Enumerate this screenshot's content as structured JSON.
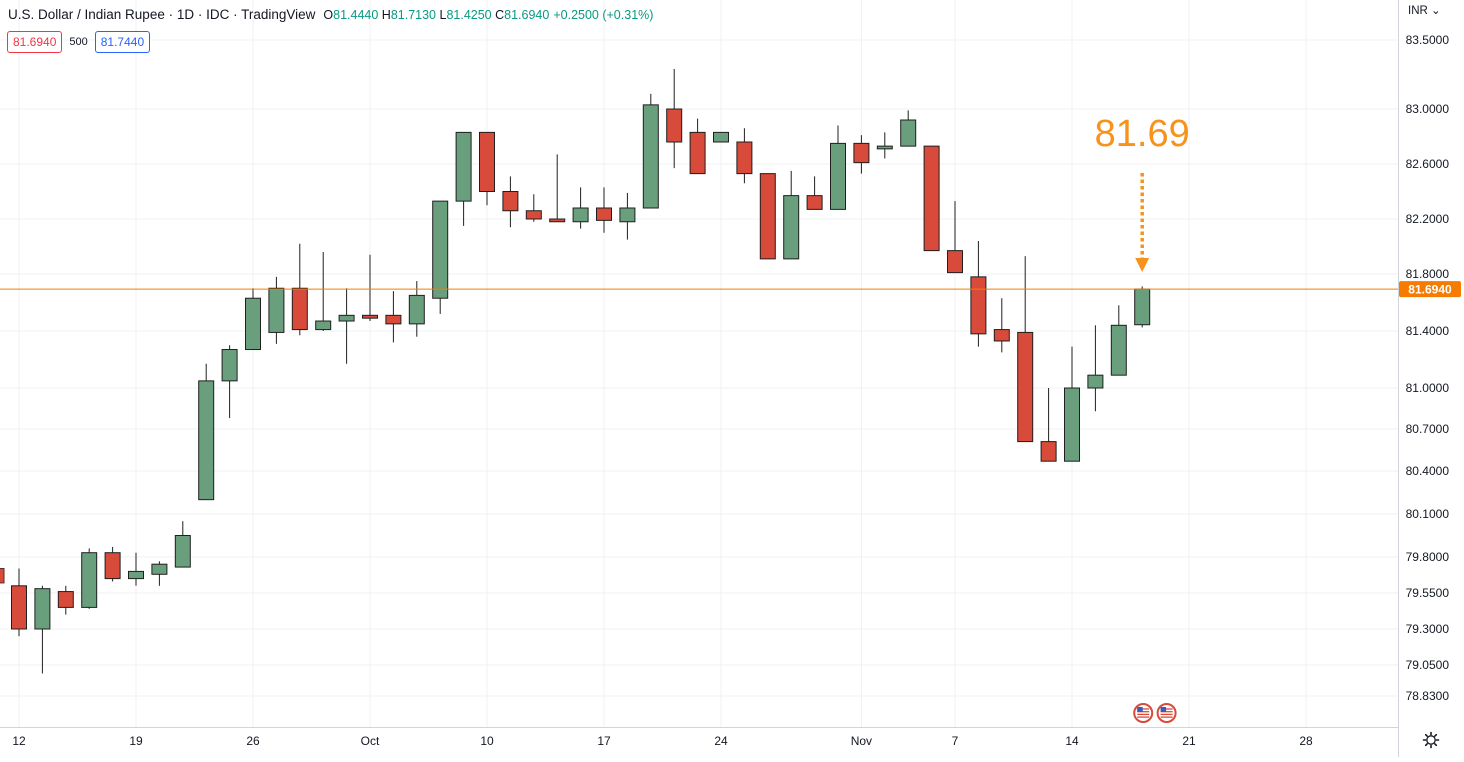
{
  "header": {
    "title": "U.S. Dollar / Indian Rupee · 1D · IDC · TradingView",
    "ohlc": {
      "o_label": "O",
      "o": "81.4440",
      "h_label": "H",
      "h": "81.7130",
      "l_label": "L",
      "l": "81.4250",
      "c_label": "C",
      "c": "81.6940"
    },
    "change": "+0.2500 (+0.31%)"
  },
  "quote": {
    "sell": "81.6940",
    "spread": "500",
    "buy": "81.7440"
  },
  "axis": {
    "currency_label": "INR"
  },
  "colors": {
    "up": "#6a9f7e",
    "down": "#d84a39",
    "price_line": "#f57c00",
    "annotation": "#f7931a"
  },
  "chart_data": {
    "type": "candlestick",
    "price_axis_labels": [
      "83.5000",
      "83.0000",
      "82.6000",
      "82.2000",
      "81.8000",
      "81.4000",
      "81.0000",
      "80.7000",
      "80.4000",
      "80.1000",
      "79.8000",
      "79.5500",
      "79.3000",
      "79.0500",
      "78.8300"
    ],
    "x_tick_labels": [
      {
        "label": "12",
        "index": 0
      },
      {
        "label": "19",
        "index": 5
      },
      {
        "label": "26",
        "index": 10
      },
      {
        "label": "Oct",
        "index": 15
      },
      {
        "label": "10",
        "index": 20
      },
      {
        "label": "17",
        "index": 25
      },
      {
        "label": "24",
        "index": 30
      },
      {
        "label": "Nov",
        "index": 36
      },
      {
        "label": "7",
        "index": 40
      },
      {
        "label": "14",
        "index": 45
      },
      {
        "label": "21",
        "index": 50
      },
      {
        "label": "28",
        "index": 55
      }
    ],
    "candles": [
      {
        "i": 0,
        "o": 79.6,
        "h": 79.72,
        "l": 79.25,
        "c": 79.3
      },
      {
        "i": 1,
        "o": 79.3,
        "h": 79.6,
        "l": 78.99,
        "c": 79.58
      },
      {
        "i": 2,
        "o": 79.56,
        "h": 79.6,
        "l": 79.4,
        "c": 79.45
      },
      {
        "i": 3,
        "o": 79.45,
        "h": 79.86,
        "l": 79.44,
        "c": 79.83
      },
      {
        "i": 4,
        "o": 79.83,
        "h": 79.87,
        "l": 79.63,
        "c": 79.65
      },
      {
        "i": 5,
        "o": 79.65,
        "h": 79.83,
        "l": 79.6,
        "c": 79.7
      },
      {
        "i": 6,
        "o": 79.68,
        "h": 79.77,
        "l": 79.6,
        "c": 79.75
      },
      {
        "i": 7,
        "o": 79.73,
        "h": 80.05,
        "l": 79.73,
        "c": 79.95
      },
      {
        "i": 8,
        "o": 80.2,
        "h": 81.17,
        "l": 80.2,
        "c": 81.05
      },
      {
        "i": 9,
        "o": 81.05,
        "h": 81.3,
        "l": 80.78,
        "c": 81.27
      },
      {
        "i": 10,
        "o": 81.27,
        "h": 81.7,
        "l": 81.27,
        "c": 81.63
      },
      {
        "i": 11,
        "o": 81.39,
        "h": 81.78,
        "l": 81.31,
        "c": 81.7
      },
      {
        "i": 12,
        "o": 81.7,
        "h": 82.02,
        "l": 81.37,
        "c": 81.41
      },
      {
        "i": 13,
        "o": 81.41,
        "h": 81.96,
        "l": 81.4,
        "c": 81.47
      },
      {
        "i": 14,
        "o": 81.47,
        "h": 81.7,
        "l": 81.17,
        "c": 81.51
      },
      {
        "i": 15,
        "o": 81.51,
        "h": 81.94,
        "l": 81.47,
        "c": 81.49
      },
      {
        "i": 16,
        "o": 81.51,
        "h": 81.68,
        "l": 81.32,
        "c": 81.45
      },
      {
        "i": 17,
        "o": 81.45,
        "h": 81.75,
        "l": 81.36,
        "c": 81.65
      },
      {
        "i": 18,
        "o": 81.63,
        "h": 82.33,
        "l": 81.52,
        "c": 82.33
      },
      {
        "i": 19,
        "o": 82.33,
        "h": 82.83,
        "l": 82.15,
        "c": 82.83
      },
      {
        "i": 20,
        "o": 82.83,
        "h": 82.83,
        "l": 82.3,
        "c": 82.4
      },
      {
        "i": 21,
        "o": 82.4,
        "h": 82.51,
        "l": 82.14,
        "c": 82.26
      },
      {
        "i": 22,
        "o": 82.26,
        "h": 82.38,
        "l": 82.18,
        "c": 82.2
      },
      {
        "i": 23,
        "o": 82.2,
        "h": 82.67,
        "l": 82.18,
        "c": 82.18
      },
      {
        "i": 24,
        "o": 82.18,
        "h": 82.43,
        "l": 82.13,
        "c": 82.28
      },
      {
        "i": 25,
        "o": 82.28,
        "h": 82.43,
        "l": 82.1,
        "c": 82.19
      },
      {
        "i": 26,
        "o": 82.18,
        "h": 82.39,
        "l": 82.05,
        "c": 82.28
      },
      {
        "i": 27,
        "o": 82.28,
        "h": 83.11,
        "l": 82.28,
        "c": 83.03
      },
      {
        "i": 28,
        "o": 83.0,
        "h": 83.29,
        "l": 82.57,
        "c": 82.76
      },
      {
        "i": 29,
        "o": 82.83,
        "h": 82.93,
        "l": 82.53,
        "c": 82.53
      },
      {
        "i": 30,
        "o": 82.76,
        "h": 82.83,
        "l": 82.76,
        "c": 82.83
      },
      {
        "i": 31,
        "o": 82.76,
        "h": 82.86,
        "l": 82.46,
        "c": 82.53
      },
      {
        "i": 32,
        "o": 82.53,
        "h": 82.53,
        "l": 81.91,
        "c": 81.91
      },
      {
        "i": 33,
        "o": 81.91,
        "h": 82.55,
        "l": 81.91,
        "c": 82.37
      },
      {
        "i": 34,
        "o": 82.37,
        "h": 82.51,
        "l": 82.27,
        "c": 82.27
      },
      {
        "i": 35,
        "o": 82.27,
        "h": 82.88,
        "l": 82.27,
        "c": 82.75
      },
      {
        "i": 36,
        "o": 82.75,
        "h": 82.81,
        "l": 82.53,
        "c": 82.61
      },
      {
        "i": 37,
        "o": 82.71,
        "h": 82.83,
        "l": 82.64,
        "c": 82.73
      },
      {
        "i": 38,
        "o": 82.73,
        "h": 82.99,
        "l": 82.73,
        "c": 82.92
      },
      {
        "i": 39,
        "o": 82.73,
        "h": 82.73,
        "l": 81.97,
        "c": 81.97
      },
      {
        "i": 40,
        "o": 81.97,
        "h": 82.33,
        "l": 81.81,
        "c": 81.81
      },
      {
        "i": 41,
        "o": 81.78,
        "h": 82.04,
        "l": 81.29,
        "c": 81.38
      },
      {
        "i": 42,
        "o": 81.41,
        "h": 81.63,
        "l": 81.25,
        "c": 81.33
      },
      {
        "i": 43,
        "o": 81.39,
        "h": 81.93,
        "l": 80.61,
        "c": 80.61
      },
      {
        "i": 44,
        "o": 80.61,
        "h": 81.0,
        "l": 80.47,
        "c": 80.47
      },
      {
        "i": 45,
        "o": 80.47,
        "h": 81.29,
        "l": 80.47,
        "c": 81.0
      },
      {
        "i": 46,
        "o": 81.0,
        "h": 81.44,
        "l": 80.83,
        "c": 81.09
      },
      {
        "i": 47,
        "o": 81.09,
        "h": 81.58,
        "l": 81.09,
        "c": 81.44
      },
      {
        "i": 48,
        "o": 81.444,
        "h": 81.713,
        "l": 81.425,
        "c": 81.694
      }
    ],
    "last_price": 81.694,
    "last_price_label": "81.6940",
    "annotation": {
      "text": "81.69",
      "target_index": 48,
      "price": 81.694
    },
    "event_marker_indices": [
      48,
      49
    ]
  }
}
